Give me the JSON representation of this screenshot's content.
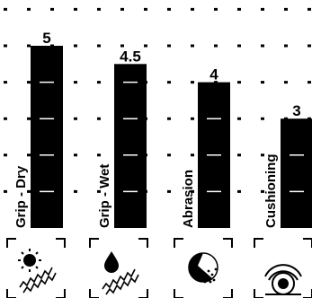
{
  "chart_data": {
    "type": "bar",
    "title": "",
    "xlabel": "",
    "ylabel": "",
    "ylim": [
      0,
      6
    ],
    "grid": true,
    "categories": [
      "Grip - Dry",
      "Grip - Wet",
      "Abrasion",
      "Cushioning"
    ],
    "values": [
      5,
      4.5,
      4,
      3
    ],
    "value_labels": [
      "5",
      "4.5",
      "4",
      "3"
    ],
    "icons": [
      "sun-traction-icon",
      "water-drop-traction-icon",
      "abrasion-icon",
      "cushioning-icon"
    ],
    "bar_color": "#000000",
    "grid_color": "#000000"
  }
}
